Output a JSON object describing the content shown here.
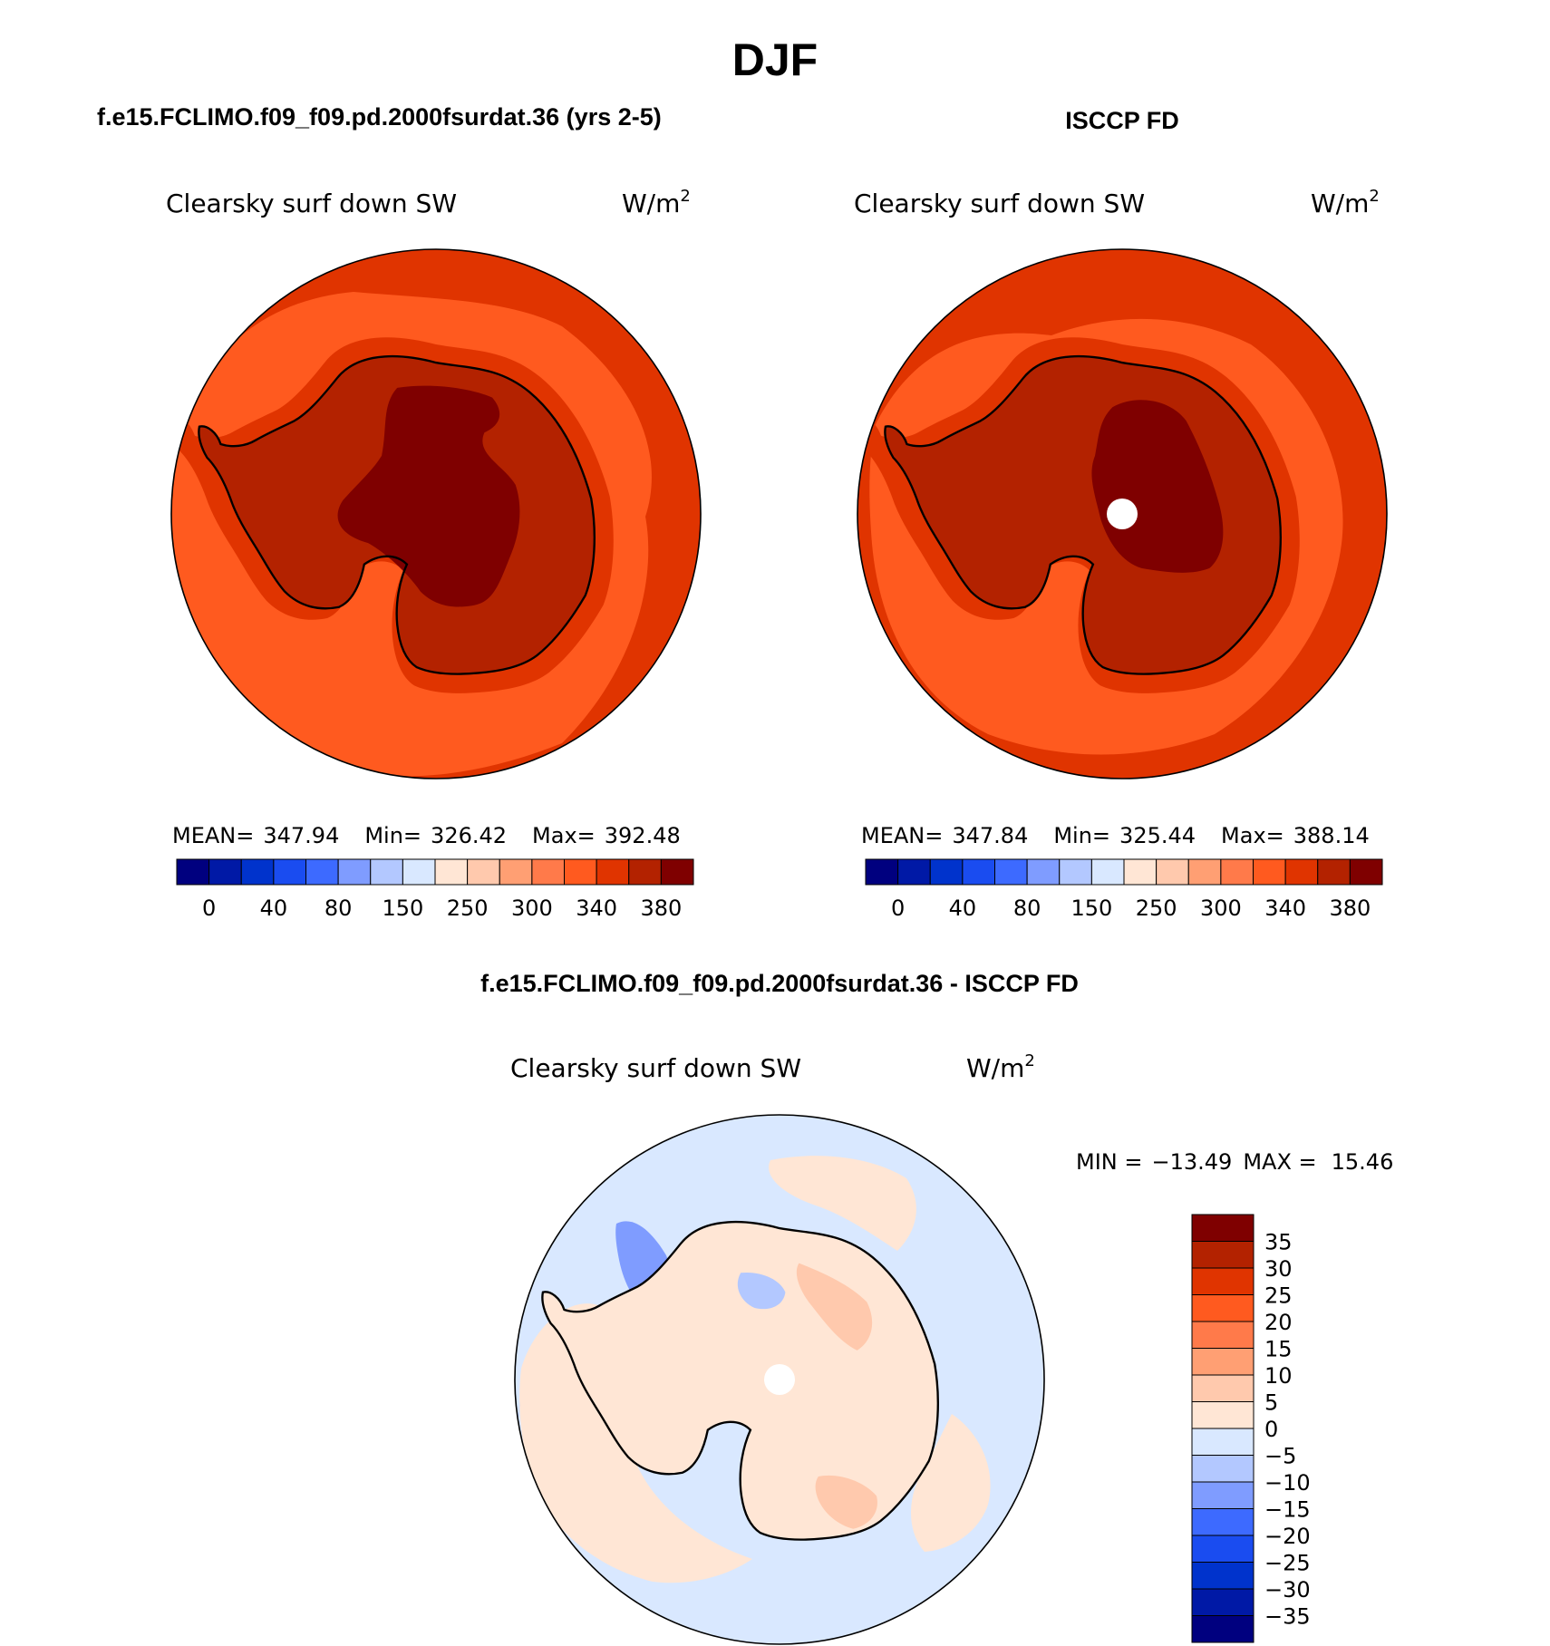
{
  "page": {
    "title": "DJF",
    "left_panel_title": "f.e15.FCLIMO.f09_f09.pd.2000fsurdat.36 (yrs 2-5)",
    "right_panel_title": "ISCCP FD",
    "diff_panel_title": "f.e15.FCLIMO.f09_f09.pd.2000fsurdat.36 - ISCCP FD"
  },
  "panels": {
    "model": {
      "variable": "Clearsky surf down SW",
      "units": "W/m",
      "units_exp": "2",
      "stats": {
        "mean_label": "MEAN=",
        "mean": "347.94",
        "min_label": "Min=",
        "min": "326.42",
        "max_label": "Max=",
        "max": "392.48"
      }
    },
    "obs": {
      "variable": "Clearsky surf down SW",
      "units": "W/m",
      "units_exp": "2",
      "stats": {
        "mean_label": "MEAN=",
        "mean": "347.84",
        "min_label": "Min=",
        "min": "325.44",
        "max_label": "Max=",
        "max": "388.14"
      }
    },
    "diff": {
      "variable": "Clearsky surf down SW",
      "units": "W/m",
      "units_exp": "2",
      "stats": {
        "min_label": "MIN =",
        "min": "−13.49",
        "max_label": "MAX =",
        "max": "15.46"
      }
    }
  },
  "colorbars": {
    "abs": {
      "colors": [
        "#00007f",
        "#0019a6",
        "#0033cc",
        "#1a4cf0",
        "#3d6aff",
        "#7f9cff",
        "#b3c8ff",
        "#d9e8ff",
        "#ffe6d5",
        "#ffc9ad",
        "#ff9f73",
        "#ff7a4a",
        "#ff5a1f",
        "#e03400",
        "#b32200",
        "#7f0000"
      ],
      "tick_labels": [
        "0",
        "40",
        "80",
        "150",
        "250",
        "300",
        "340",
        "380"
      ]
    },
    "diff": {
      "colors": [
        "#00007f",
        "#0019a6",
        "#0033cc",
        "#1a4cf0",
        "#3d6aff",
        "#7f9cff",
        "#b3c8ff",
        "#d9e8ff",
        "#ffe6d5",
        "#ffc9ad",
        "#ff9f73",
        "#ff7a4a",
        "#ff5a1f",
        "#e03400",
        "#b32200",
        "#7f0000"
      ],
      "tick_labels": [
        "−35",
        "−30",
        "−25",
        "−20",
        "−15",
        "−10",
        "−5",
        "0",
        "5",
        "10",
        "15",
        "20",
        "25",
        "30",
        "35"
      ]
    }
  },
  "map_colors": {
    "ocean_outer": "#e03400",
    "ocean_mid": "#ff5a1f",
    "coast_band": "#e03400",
    "interior": "#b32200",
    "plateau": "#7f0000",
    "diff_base": "#d9e8ff",
    "diff_pos": "#ffe6d5",
    "diff_pos2": "#ffc9ad",
    "diff_neg": "#b3c8ff",
    "diff_neg2": "#7f9cff",
    "coastline": "#000000"
  }
}
